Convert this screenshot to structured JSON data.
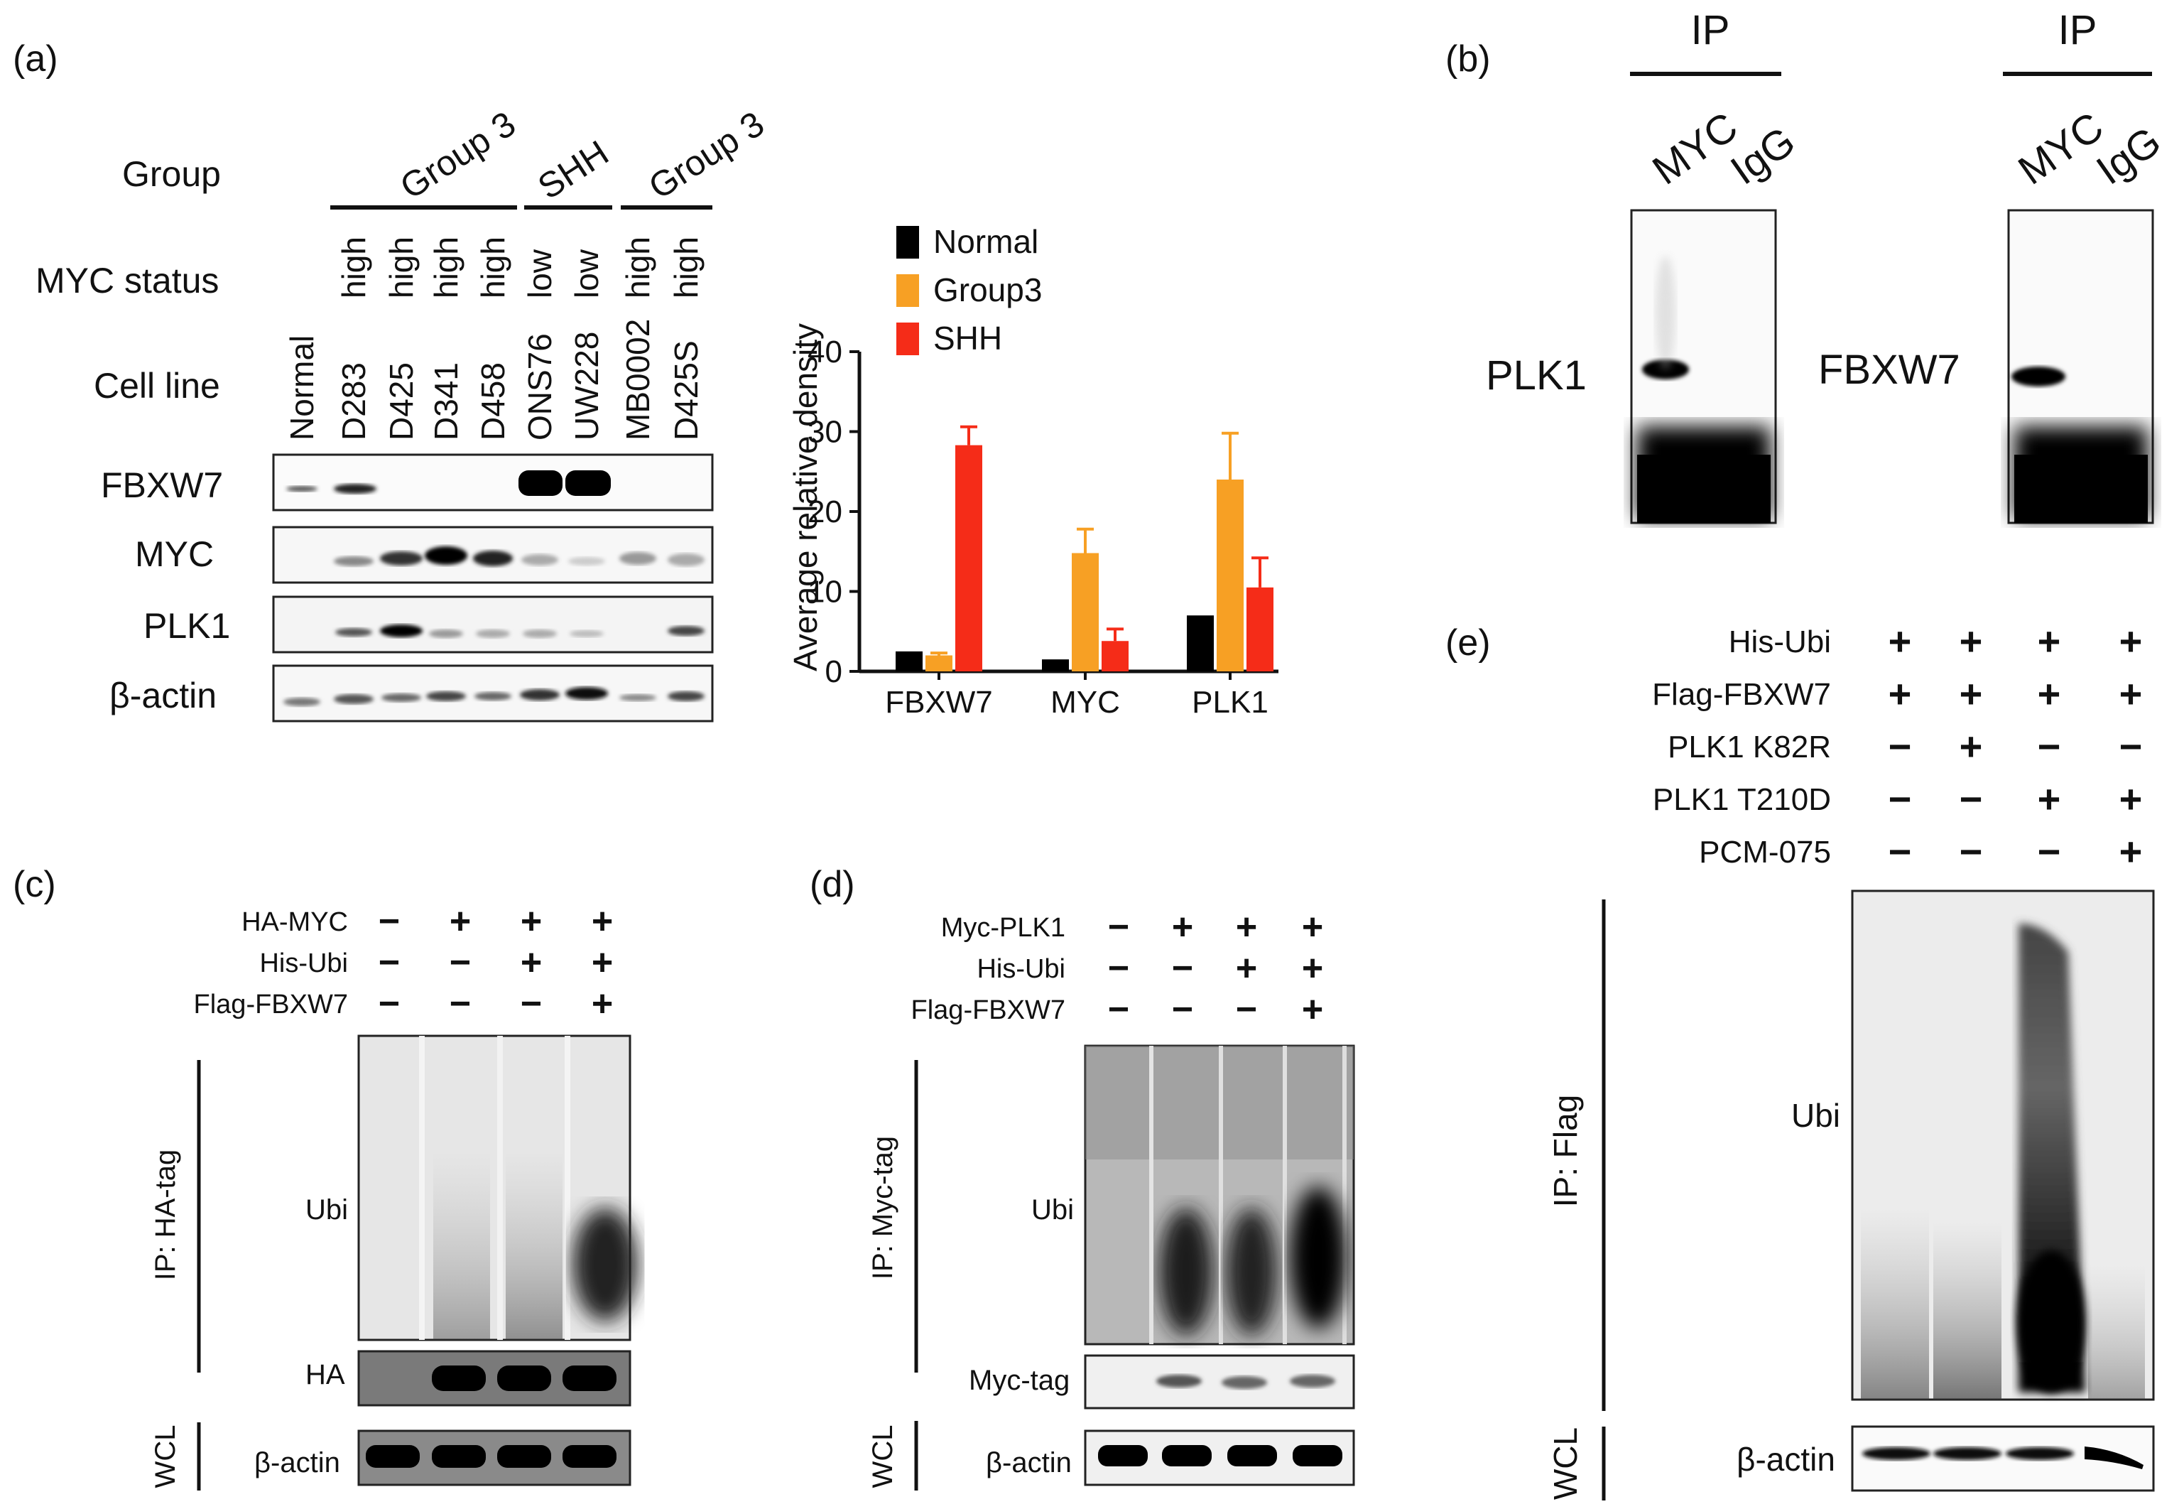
{
  "panel_a": {
    "letter": "(a)",
    "row_labels": {
      "group": "Group",
      "myc_status": "MYC status",
      "cell_line": "Cell line"
    },
    "groups": [
      "Group 3",
      "SHH",
      "Group 3"
    ],
    "myc_status": [
      "high",
      "high",
      "high",
      "high",
      "low",
      "low",
      "high",
      "high"
    ],
    "cell_lines": [
      "Normal",
      "D283",
      "D425",
      "D341",
      "D458",
      "ONS76",
      "UW228",
      "MB0002",
      "D425S"
    ],
    "blot_labels": [
      "FBXW7",
      "MYC",
      "PLK1",
      "β-actin"
    ]
  },
  "chart_data": {
    "type": "bar",
    "categories": [
      "FBXW7",
      "MYC",
      "PLK1"
    ],
    "series": [
      {
        "name": "Normal",
        "values": [
          2.5,
          1.5,
          7
        ],
        "errors": [
          0,
          0,
          0
        ],
        "color": "#000000"
      },
      {
        "name": "Group3",
        "values": [
          2,
          14.8,
          24
        ],
        "errors": [
          0.3,
          3,
          5.8
        ],
        "color": "#f7a024"
      },
      {
        "name": "SHH",
        "values": [
          28.3,
          3.8,
          10.5
        ],
        "errors": [
          2.3,
          1.5,
          3.7
        ],
        "color": "#f52c18"
      }
    ],
    "ylabel": "Average relative density",
    "ylim": [
      0,
      40
    ],
    "yticks": [
      "0",
      "10",
      "20",
      "30",
      "40"
    ],
    "legend": "top"
  },
  "panel_b": {
    "letter": "(b)",
    "header": "IP",
    "lanes": [
      "MYC",
      "IgG"
    ],
    "blot_labels": [
      "PLK1",
      "FBXW7"
    ]
  },
  "panel_c": {
    "letter": "(c)",
    "conditions": [
      {
        "label": "HA-MYC",
        "signs": [
          "−",
          "+",
          "+",
          "+"
        ]
      },
      {
        "label": "His-Ubi",
        "signs": [
          "−",
          "−",
          "+",
          "+"
        ]
      },
      {
        "label": "Flag-FBXW7",
        "signs": [
          "−",
          "−",
          "−",
          "+"
        ]
      }
    ],
    "ip_label": "IP: HA-tag",
    "wcl_label": "WCL",
    "blot_labels": [
      "Ubi",
      "HA",
      "β-actin"
    ]
  },
  "panel_d": {
    "letter": "(d)",
    "conditions": [
      {
        "label": "Myc-PLK1",
        "signs": [
          "−",
          "+",
          "+",
          "+"
        ]
      },
      {
        "label": "His-Ubi",
        "signs": [
          "−",
          "−",
          "+",
          "+"
        ]
      },
      {
        "label": "Flag-FBXW7",
        "signs": [
          "−",
          "−",
          "−",
          "+"
        ]
      }
    ],
    "ip_label": "IP: Myc-tag",
    "wcl_label": "WCL",
    "blot_labels": [
      "Ubi",
      "Myc-tag",
      "β-actin"
    ]
  },
  "panel_e": {
    "letter": "(e)",
    "conditions": [
      {
        "label": "His-Ubi",
        "signs": [
          "+",
          "+",
          "+",
          "+"
        ]
      },
      {
        "label": "Flag-FBXW7",
        "signs": [
          "+",
          "+",
          "+",
          "+"
        ]
      },
      {
        "label": "PLK1 K82R",
        "signs": [
          "−",
          "+",
          "−",
          "−"
        ]
      },
      {
        "label": "PLK1 T210D",
        "signs": [
          "−",
          "−",
          "+",
          "+"
        ]
      },
      {
        "label": "PCM-075",
        "signs": [
          "−",
          "−",
          "−",
          "+"
        ]
      }
    ],
    "ip_label": "IP: Flag",
    "wcl_label": "WCL",
    "blot_labels": [
      "Ubi",
      "β-actin"
    ]
  }
}
